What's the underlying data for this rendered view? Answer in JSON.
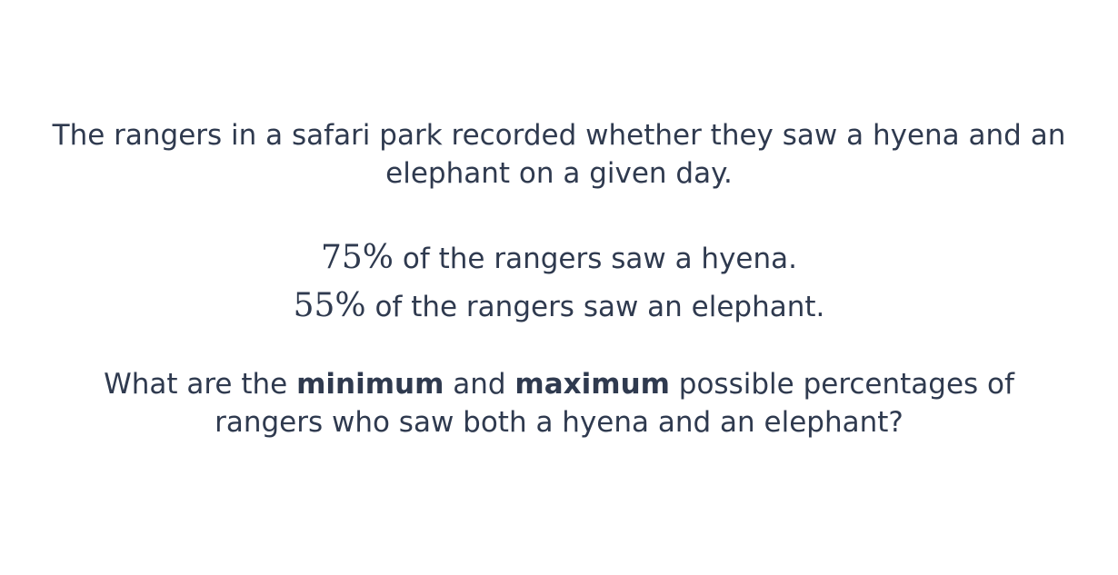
{
  "question": {
    "intro_line1": "The rangers in a safari park recorded whether they saw a hyena and an",
    "intro_line2": "elephant on a given day.",
    "stat1": {
      "value": "75%",
      "text": " of the rangers saw a hyena."
    },
    "stat2": {
      "value": "55%",
      "text": " of the rangers saw an elephant."
    },
    "prompt": {
      "part1": "What are the ",
      "bold1": "minimum",
      "part2": " and ",
      "bold2": "maximum",
      "part3": " possible percentages of",
      "line2": "rangers who saw both a hyena and an elephant?"
    }
  },
  "colors": {
    "text": "#2f3a4f",
    "background": "#ffffff"
  }
}
